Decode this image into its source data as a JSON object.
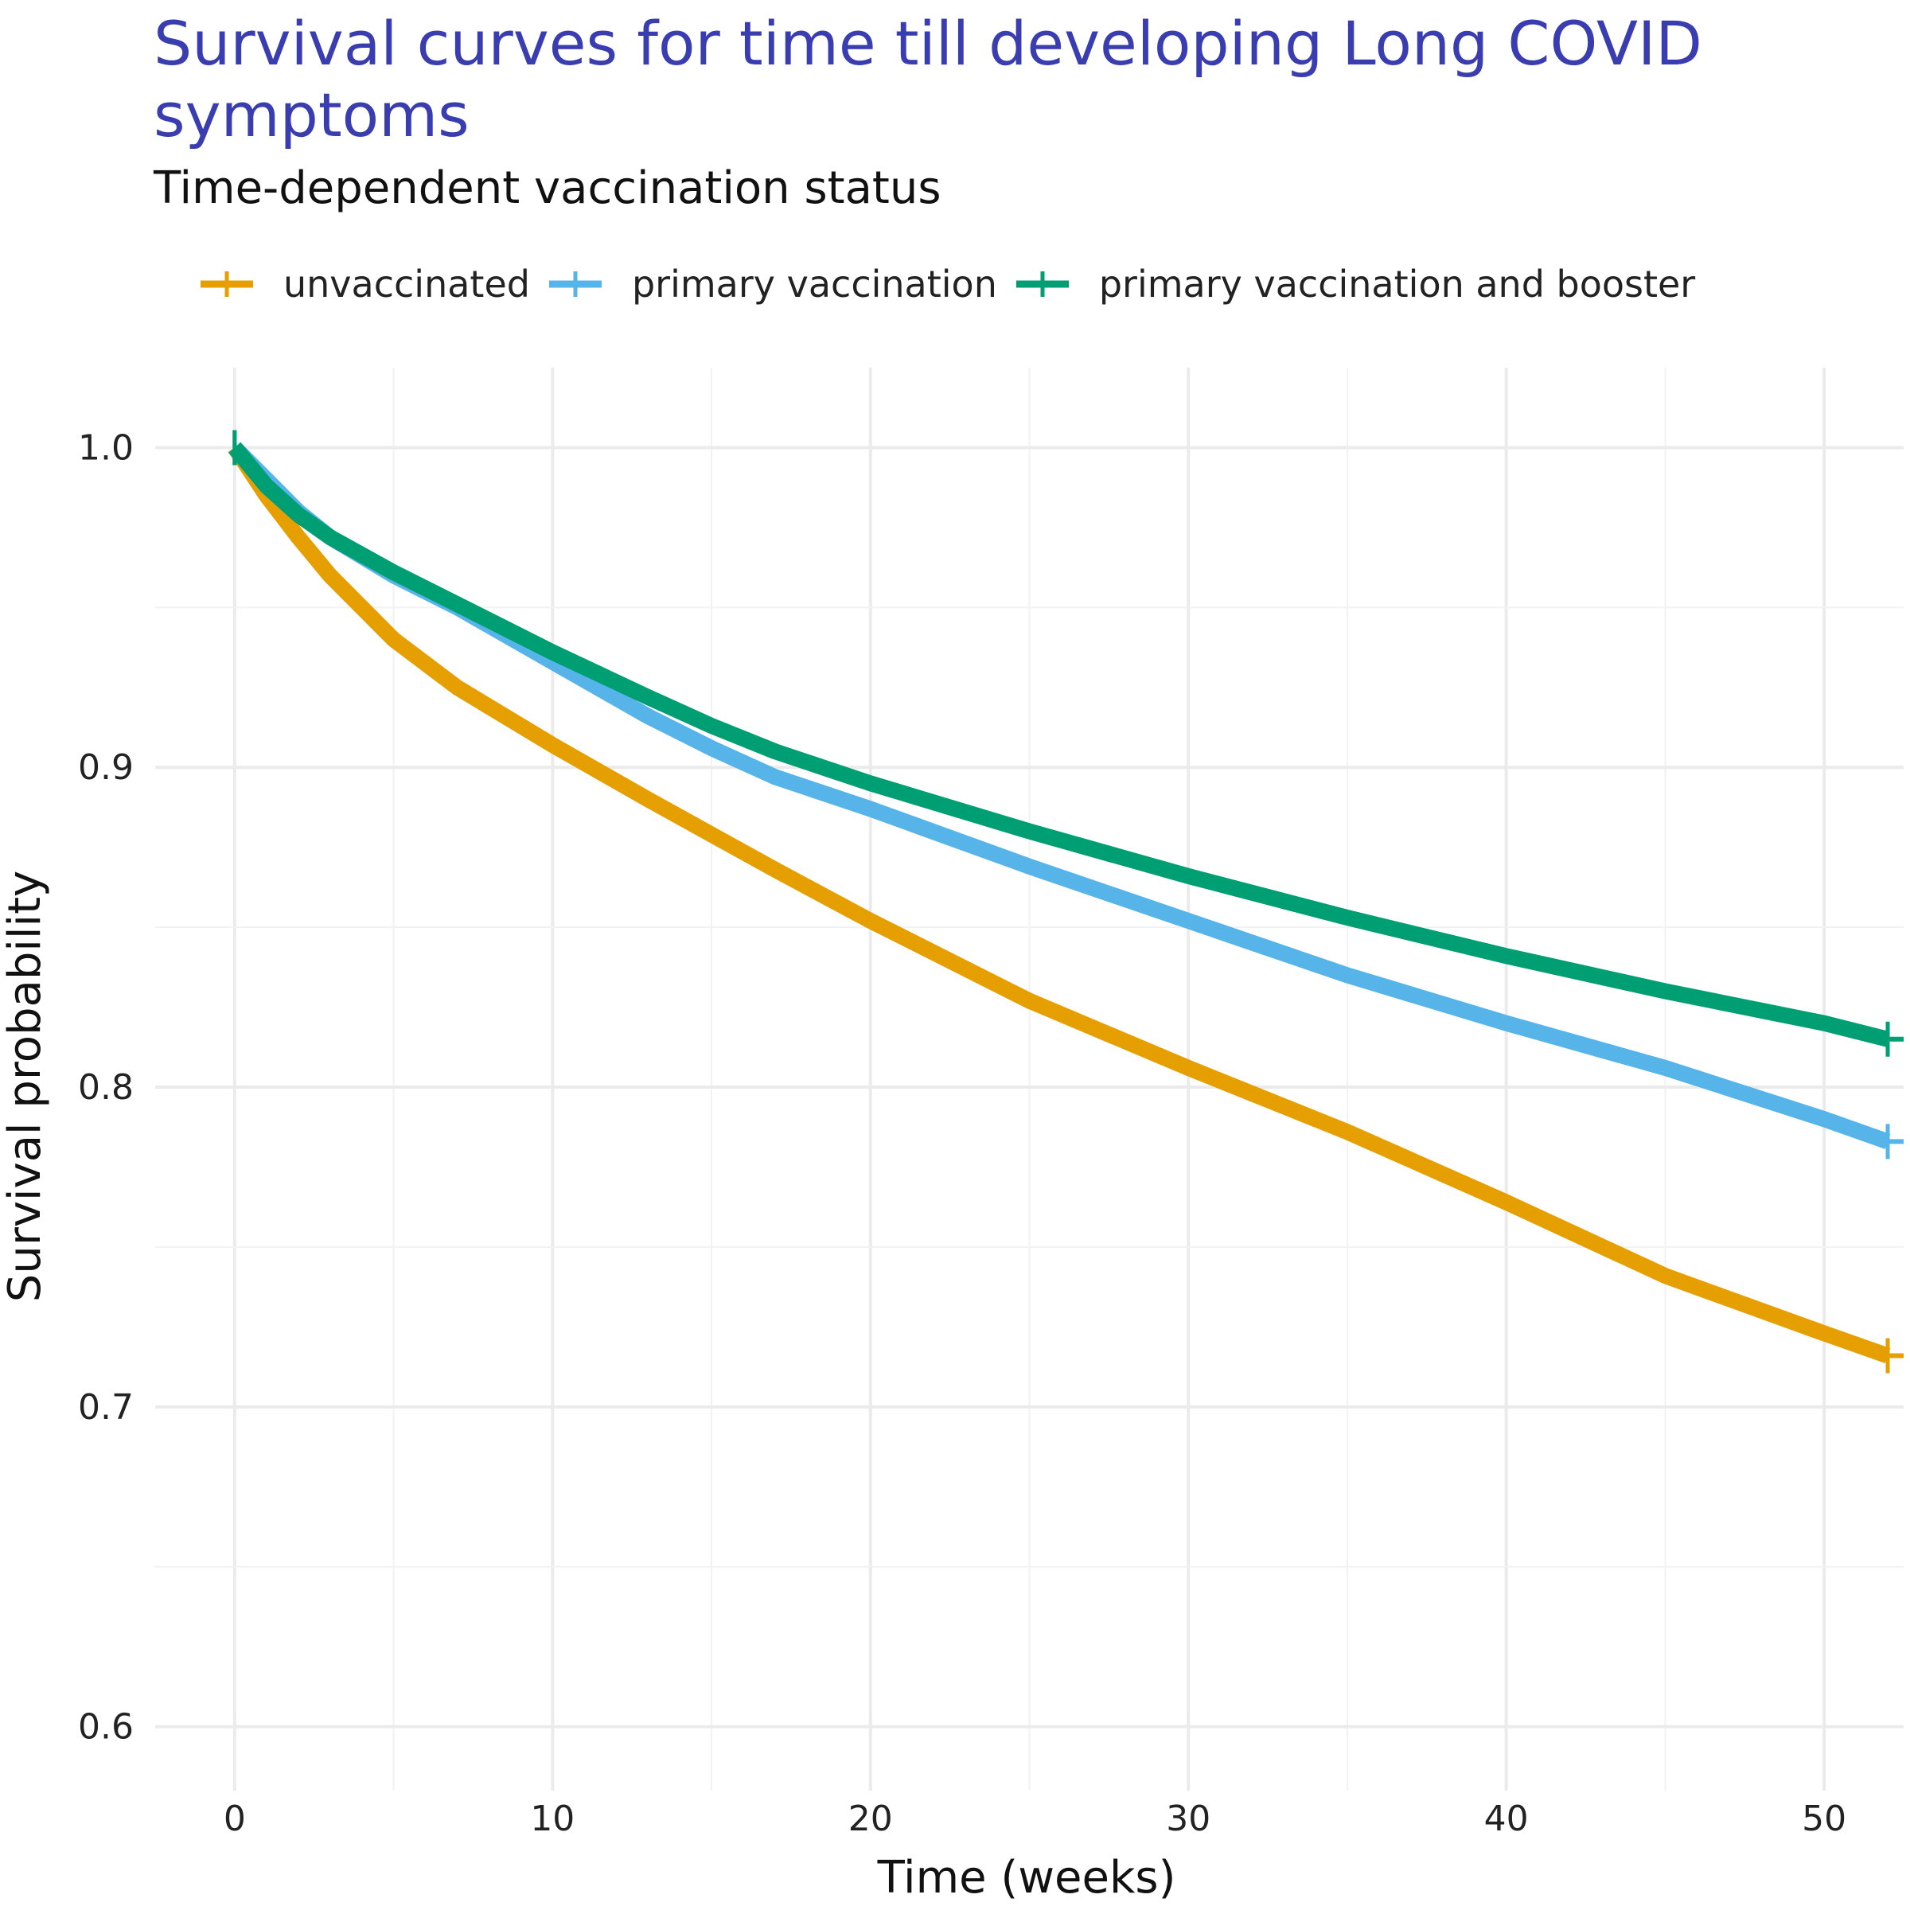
{
  "chart_data": {
    "type": "line",
    "title": "Survival curves for time till developing Long COVID symptoms",
    "subtitle": "Time-dependent vaccination status",
    "xlabel": "Time (weeks)",
    "ylabel": "Survival probability",
    "xlim": [
      -2.5,
      52.5
    ],
    "ylim": [
      0.58,
      1.025
    ],
    "x_ticks": [
      0,
      10,
      20,
      30,
      40,
      50
    ],
    "y_ticks": [
      0.6,
      0.7,
      0.8,
      0.9,
      1.0
    ],
    "y_tick_labels": [
      "0.6",
      "0.7",
      "0.8",
      "0.9",
      "1.0"
    ],
    "grid": true,
    "legend_position": "top-left",
    "series": [
      {
        "name": "unvaccinated",
        "color": "#E69F00",
        "x": [
          0,
          1,
          2,
          3,
          4,
          5,
          7,
          10,
          13,
          15,
          17,
          20,
          25,
          30,
          35,
          40,
          45,
          50,
          52
        ],
        "y": [
          1.0,
          0.985,
          0.972,
          0.96,
          0.95,
          0.94,
          0.925,
          0.907,
          0.89,
          0.879,
          0.868,
          0.852,
          0.827,
          0.806,
          0.786,
          0.764,
          0.741,
          0.723,
          0.716
        ]
      },
      {
        "name": "primary vaccination",
        "color": "#56B4E9",
        "x": [
          0,
          1,
          2,
          3,
          5,
          7,
          10,
          13,
          15,
          17,
          20,
          25,
          30,
          35,
          40,
          45,
          50,
          52
        ],
        "y": [
          1.0,
          0.99,
          0.98,
          0.972,
          0.96,
          0.95,
          0.933,
          0.916,
          0.906,
          0.897,
          0.887,
          0.869,
          0.852,
          0.835,
          0.82,
          0.806,
          0.79,
          0.783
        ]
      },
      {
        "name": "primary vaccination and booster",
        "color": "#009E73",
        "x": [
          0,
          1,
          2,
          3,
          5,
          7,
          10,
          13,
          15,
          17,
          20,
          25,
          30,
          35,
          40,
          45,
          50,
          52
        ],
        "y": [
          1.0,
          0.988,
          0.979,
          0.972,
          0.961,
          0.951,
          0.936,
          0.922,
          0.913,
          0.905,
          0.895,
          0.88,
          0.866,
          0.853,
          0.841,
          0.83,
          0.82,
          0.815
        ]
      }
    ]
  }
}
